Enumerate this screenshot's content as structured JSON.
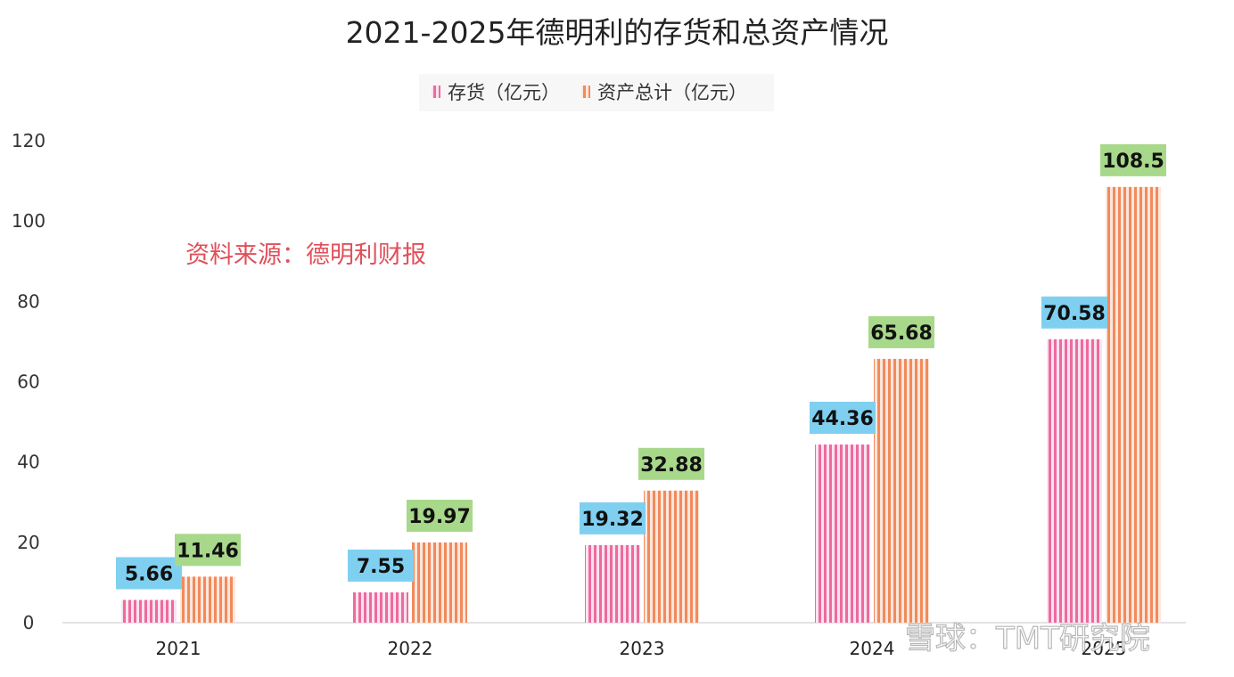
{
  "chart_data": {
    "type": "bar",
    "title": "2021-2025年德明利的存货和总资产情况",
    "categories": [
      "2021",
      "2022",
      "2023",
      "2024",
      "2025"
    ],
    "series": [
      {
        "name": "存货（亿元）",
        "values": [
          5.66,
          7.55,
          19.32,
          44.36,
          70.58
        ],
        "color": "#ee6aa0",
        "label_bg": "#7fd0f0"
      },
      {
        "name": "资产总计（亿元）",
        "values": [
          11.46,
          19.97,
          32.88,
          65.68,
          108.5
        ],
        "color": "#f28a5c",
        "label_bg": "#a8d88a"
      }
    ],
    "data_labels": [
      [
        "5.66",
        "7.55",
        "19.32",
        "44.36",
        "70.58"
      ],
      [
        "11.46",
        "19.97",
        "32.88",
        "65.68",
        "108.5"
      ]
    ],
    "yticks": [
      "0",
      "20",
      "40",
      "60",
      "80",
      "100",
      "120"
    ],
    "ylim": [
      0,
      120
    ],
    "xlabel": "",
    "ylabel": "",
    "legend_position": "top-center",
    "grid": false,
    "annotation": "资料来源：德明利财报",
    "watermark": "雪球：TMT研究院"
  }
}
